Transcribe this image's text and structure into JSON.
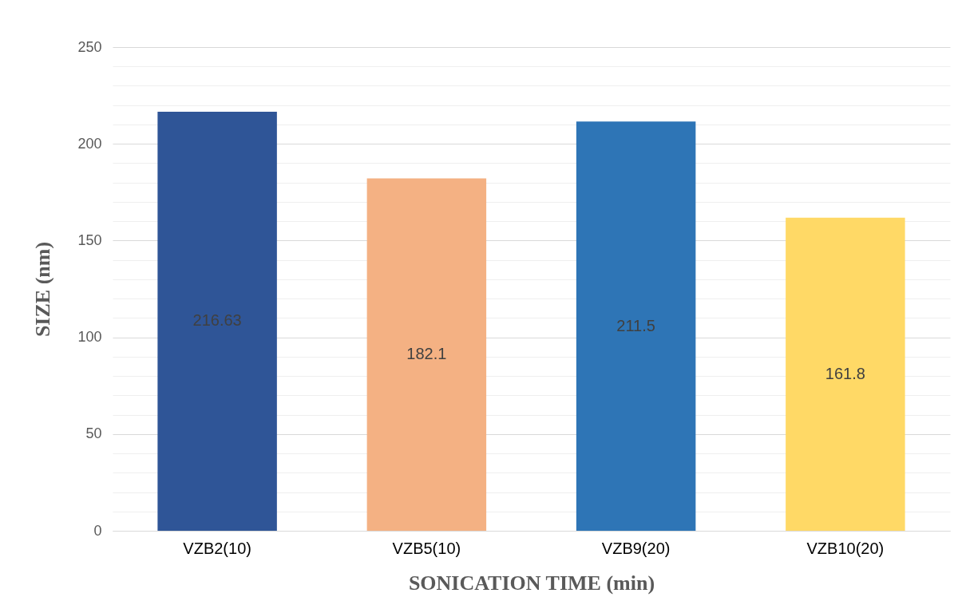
{
  "chart_data": {
    "type": "bar",
    "xlabel": "SONICATION TIME (min)",
    "ylabel": "SIZE (nm)",
    "categories": [
      "VZB2(10)",
      "VZB5(10)",
      "VZB9(20)",
      "VZB10(20)"
    ],
    "values": [
      216.63,
      182.1,
      211.5,
      161.8
    ],
    "colors": [
      "#2f5597",
      "#f4b183",
      "#2e75b6",
      "#ffd966"
    ],
    "ylim": [
      0,
      250
    ],
    "yticks": [
      0,
      {
        "value": 10,
        "label": null
      },
      {
        "value": 20,
        "label": null
      },
      {
        "value": 30,
        "label": null
      },
      {
        "value": 40,
        "label": null
      },
      50,
      {
        "value": 60,
        "label": null
      },
      {
        "value": 70,
        "label": null
      },
      {
        "value": 80,
        "label": null
      },
      {
        "value": 90,
        "label": null
      },
      100,
      {
        "value": 110,
        "label": null
      },
      {
        "value": 120,
        "label": null
      },
      {
        "value": 130,
        "label": null
      },
      {
        "value": 140,
        "label": null
      },
      150,
      {
        "value": 160,
        "label": null
      },
      {
        "value": 170,
        "label": null
      },
      {
        "value": 180,
        "label": null
      },
      {
        "value": 190,
        "label": null
      },
      200,
      {
        "value": 210,
        "label": null
      },
      {
        "value": 220,
        "label": null
      },
      {
        "value": 230,
        "label": null
      },
      {
        "value": 240,
        "label": null
      },
      250
    ],
    "grid": true,
    "legend": false,
    "data_labels": true
  }
}
